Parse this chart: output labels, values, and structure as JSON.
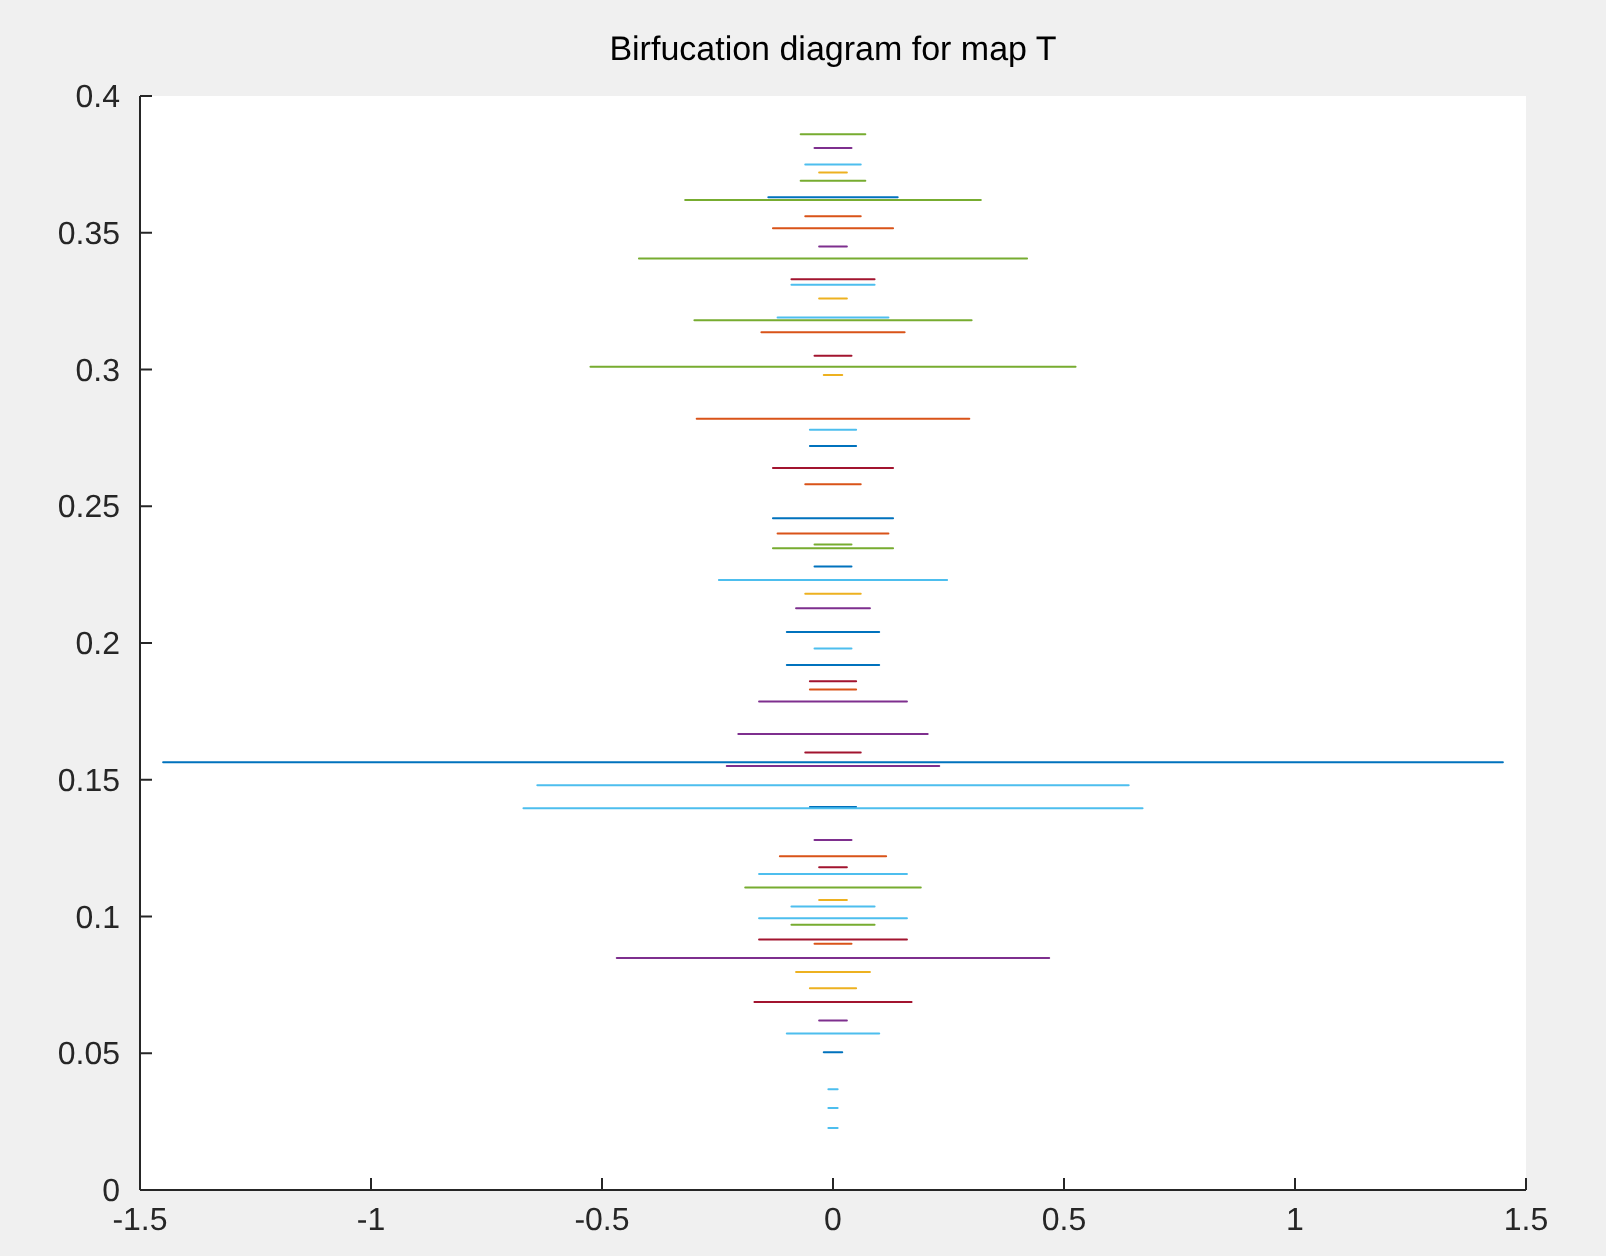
{
  "chart_data": {
    "type": "line",
    "title": "Birfucation diagram for map T",
    "xlim": [
      -1.5,
      1.5
    ],
    "ylim": [
      0,
      0.4
    ],
    "xticks": [
      -1.5,
      -1,
      -0.5,
      0,
      0.5,
      1,
      1.5
    ],
    "yticks": [
      0,
      0.05,
      0.1,
      0.15,
      0.2,
      0.25,
      0.3,
      0.35,
      0.4
    ],
    "grid": false,
    "marker": "none",
    "line_style": "solid",
    "series": [
      {
        "color": "#0072bd",
        "x": [
          -1.45,
          1.45
        ],
        "values": [
          0.1564,
          0.1564
        ]
      },
      {
        "color": "#0072bd",
        "x": [
          -0.13,
          0.13
        ],
        "values": [
          0.2456,
          0.2456
        ]
      },
      {
        "color": "#0072bd",
        "x": [
          -0.1,
          0.1
        ],
        "values": [
          0.204,
          0.204
        ]
      },
      {
        "color": "#0072bd",
        "x": [
          -0.1,
          0.1
        ],
        "values": [
          0.192,
          0.192
        ]
      },
      {
        "color": "#0072bd",
        "x": [
          -0.14,
          0.14
        ],
        "values": [
          0.363,
          0.363
        ]
      },
      {
        "color": "#0072bd",
        "x": [
          -0.02,
          0.02
        ],
        "values": [
          0.0504,
          0.0504
        ]
      },
      {
        "color": "#0072bd",
        "x": [
          -0.04,
          0.04
        ],
        "values": [
          0.228,
          0.228
        ]
      },
      {
        "color": "#0072bd",
        "x": [
          -0.05,
          0.05
        ],
        "values": [
          0.272,
          0.272
        ]
      },
      {
        "color": "#0072bd",
        "x": [
          -0.05,
          0.05
        ],
        "values": [
          0.14,
          0.14
        ]
      },
      {
        "color": "#d95319",
        "x": [
          -0.295,
          0.295
        ],
        "values": [
          0.282,
          0.282
        ]
      },
      {
        "color": "#d95319",
        "x": [
          -0.155,
          0.155
        ],
        "values": [
          0.3136,
          0.3136
        ]
      },
      {
        "color": "#d95319",
        "x": [
          -0.13,
          0.13
        ],
        "values": [
          0.3516,
          0.3516
        ]
      },
      {
        "color": "#d95319",
        "x": [
          -0.06,
          0.06
        ],
        "values": [
          0.356,
          0.356
        ]
      },
      {
        "color": "#d95319",
        "x": [
          -0.12,
          0.12
        ],
        "values": [
          0.24,
          0.24
        ]
      },
      {
        "color": "#d95319",
        "x": [
          -0.115,
          0.115
        ],
        "values": [
          0.122,
          0.122
        ]
      },
      {
        "color": "#d95319",
        "x": [
          -0.06,
          0.06
        ],
        "values": [
          0.258,
          0.258
        ]
      },
      {
        "color": "#d95319",
        "x": [
          -0.05,
          0.05
        ],
        "values": [
          0.183,
          0.183
        ]
      },
      {
        "color": "#d95319",
        "x": [
          -0.04,
          0.04
        ],
        "values": [
          0.09,
          0.09
        ]
      },
      {
        "color": "#edb120",
        "x": [
          -0.08,
          0.08
        ],
        "values": [
          0.0797,
          0.0797
        ]
      },
      {
        "color": "#edb120",
        "x": [
          -0.05,
          0.05
        ],
        "values": [
          0.0738,
          0.0738
        ]
      },
      {
        "color": "#edb120",
        "x": [
          -0.03,
          0.03
        ],
        "values": [
          0.326,
          0.326
        ]
      },
      {
        "color": "#edb120",
        "x": [
          -0.06,
          0.06
        ],
        "values": [
          0.218,
          0.218
        ]
      },
      {
        "color": "#edb120",
        "x": [
          -0.03,
          0.03
        ],
        "values": [
          0.106,
          0.106
        ]
      },
      {
        "color": "#edb120",
        "x": [
          -0.03,
          0.03
        ],
        "values": [
          0.372,
          0.372
        ]
      },
      {
        "color": "#edb120",
        "x": [
          -0.02,
          0.02
        ],
        "values": [
          0.298,
          0.298
        ]
      },
      {
        "color": "#7e2f8e",
        "x": [
          -0.468,
          0.468
        ],
        "values": [
          0.0848,
          0.0848
        ]
      },
      {
        "color": "#7e2f8e",
        "x": [
          -0.16,
          0.16
        ],
        "values": [
          0.1786,
          0.1786
        ]
      },
      {
        "color": "#7e2f8e",
        "x": [
          -0.205,
          0.205
        ],
        "values": [
          0.1667,
          0.1667
        ]
      },
      {
        "color": "#7e2f8e",
        "x": [
          -0.23,
          0.23
        ],
        "values": [
          0.155,
          0.155
        ]
      },
      {
        "color": "#7e2f8e",
        "x": [
          -0.08,
          0.08
        ],
        "values": [
          0.2127,
          0.2127
        ]
      },
      {
        "color": "#7e2f8e",
        "x": [
          -0.04,
          0.04
        ],
        "values": [
          0.381,
          0.381
        ]
      },
      {
        "color": "#7e2f8e",
        "x": [
          -0.03,
          0.03
        ],
        "values": [
          0.345,
          0.345
        ]
      },
      {
        "color": "#7e2f8e",
        "x": [
          -0.04,
          0.04
        ],
        "values": [
          0.128,
          0.128
        ]
      },
      {
        "color": "#7e2f8e",
        "x": [
          -0.03,
          0.03
        ],
        "values": [
          0.062,
          0.062
        ]
      },
      {
        "color": "#77ac30",
        "x": [
          -0.525,
          0.525
        ],
        "values": [
          0.301,
          0.301
        ]
      },
      {
        "color": "#77ac30",
        "x": [
          -0.42,
          0.42
        ],
        "values": [
          0.3406,
          0.3406
        ]
      },
      {
        "color": "#77ac30",
        "x": [
          -0.32,
          0.32
        ],
        "values": [
          0.362,
          0.362
        ]
      },
      {
        "color": "#77ac30",
        "x": [
          -0.3,
          0.3
        ],
        "values": [
          0.318,
          0.318
        ]
      },
      {
        "color": "#77ac30",
        "x": [
          -0.13,
          0.13
        ],
        "values": [
          0.2346,
          0.2346
        ]
      },
      {
        "color": "#77ac30",
        "x": [
          -0.19,
          0.19
        ],
        "values": [
          0.1106,
          0.1106
        ]
      },
      {
        "color": "#77ac30",
        "x": [
          -0.09,
          0.09
        ],
        "values": [
          0.097,
          0.097
        ]
      },
      {
        "color": "#77ac30",
        "x": [
          -0.07,
          0.07
        ],
        "values": [
          0.369,
          0.369
        ]
      },
      {
        "color": "#77ac30",
        "x": [
          -0.07,
          0.07
        ],
        "values": [
          0.386,
          0.386
        ]
      },
      {
        "color": "#77ac30",
        "x": [
          -0.04,
          0.04
        ],
        "values": [
          0.236,
          0.236
        ]
      },
      {
        "color": "#4dbeee",
        "x": [
          -0.64,
          0.64
        ],
        "values": [
          0.148,
          0.148
        ]
      },
      {
        "color": "#4dbeee",
        "x": [
          -0.67,
          0.67
        ],
        "values": [
          0.1396,
          0.1396
        ]
      },
      {
        "color": "#4dbeee",
        "x": [
          -0.247,
          0.247
        ],
        "values": [
          0.223,
          0.223
        ]
      },
      {
        "color": "#4dbeee",
        "x": [
          -0.12,
          0.12
        ],
        "values": [
          0.319,
          0.319
        ]
      },
      {
        "color": "#4dbeee",
        "x": [
          -0.09,
          0.09
        ],
        "values": [
          0.331,
          0.331
        ]
      },
      {
        "color": "#4dbeee",
        "x": [
          -0.06,
          0.06
        ],
        "values": [
          0.375,
          0.375
        ]
      },
      {
        "color": "#4dbeee",
        "x": [
          -0.16,
          0.16
        ],
        "values": [
          0.1155,
          0.1155
        ]
      },
      {
        "color": "#4dbeee",
        "x": [
          -0.09,
          0.09
        ],
        "values": [
          0.1037,
          0.1037
        ]
      },
      {
        "color": "#4dbeee",
        "x": [
          -0.16,
          0.16
        ],
        "values": [
          0.0994,
          0.0994
        ]
      },
      {
        "color": "#4dbeee",
        "x": [
          -0.1,
          0.1
        ],
        "values": [
          0.0572,
          0.0572
        ]
      },
      {
        "color": "#4dbeee",
        "x": [
          -0.01,
          0.01
        ],
        "values": [
          0.0368,
          0.0368
        ]
      },
      {
        "color": "#4dbeee",
        "x": [
          -0.01,
          0.01
        ],
        "values": [
          0.03,
          0.03
        ]
      },
      {
        "color": "#4dbeee",
        "x": [
          -0.01,
          0.01
        ],
        "values": [
          0.0227,
          0.0227
        ]
      },
      {
        "color": "#4dbeee",
        "x": [
          -0.05,
          0.05
        ],
        "values": [
          0.278,
          0.278
        ]
      },
      {
        "color": "#4dbeee",
        "x": [
          -0.04,
          0.04
        ],
        "values": [
          0.198,
          0.198
        ]
      },
      {
        "color": "#a2142f",
        "x": [
          -0.17,
          0.17
        ],
        "values": [
          0.0687,
          0.0687
        ]
      },
      {
        "color": "#a2142f",
        "x": [
          -0.16,
          0.16
        ],
        "values": [
          0.0916,
          0.0916
        ]
      },
      {
        "color": "#a2142f",
        "x": [
          -0.13,
          0.13
        ],
        "values": [
          0.264,
          0.264
        ]
      },
      {
        "color": "#a2142f",
        "x": [
          -0.09,
          0.09
        ],
        "values": [
          0.333,
          0.333
        ]
      },
      {
        "color": "#a2142f",
        "x": [
          -0.05,
          0.05
        ],
        "values": [
          0.186,
          0.186
        ]
      },
      {
        "color": "#a2142f",
        "x": [
          -0.06,
          0.06
        ],
        "values": [
          0.16,
          0.16
        ]
      },
      {
        "color": "#a2142f",
        "x": [
          -0.04,
          0.04
        ],
        "values": [
          0.305,
          0.305
        ]
      },
      {
        "color": "#a2142f",
        "x": [
          -0.03,
          0.03
        ],
        "values": [
          0.118,
          0.118
        ]
      }
    ]
  }
}
